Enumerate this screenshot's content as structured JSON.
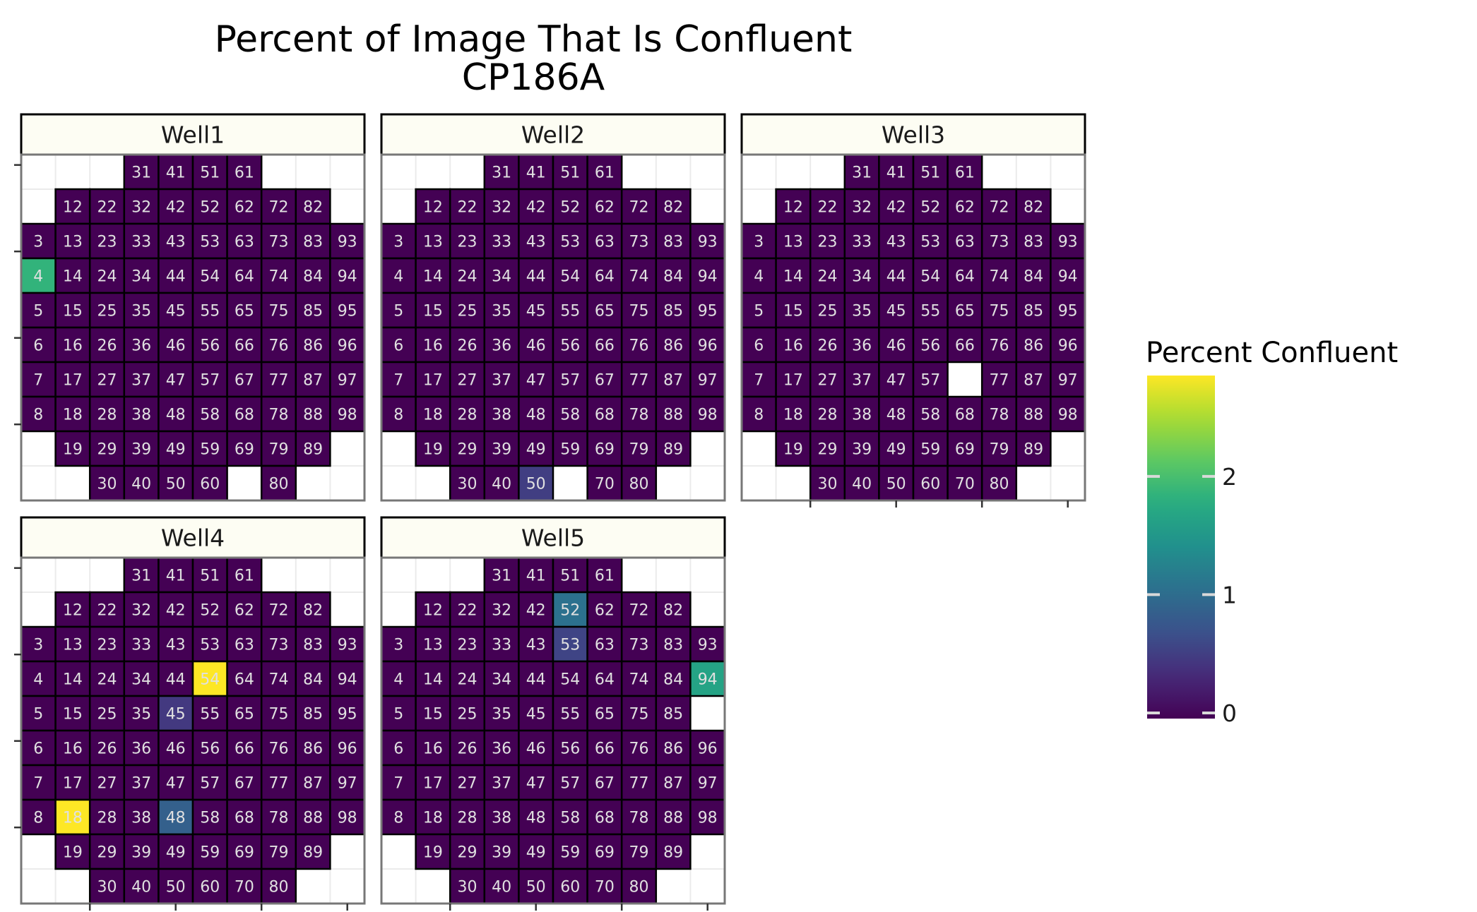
{
  "chart_data": {
    "type": "heatmap",
    "title": "Percent of Image That Is Confluent",
    "subtitle": "CP186A",
    "xlabel": "",
    "ylabel": "",
    "grid_layout": {
      "rows": 10,
      "cols": 10
    },
    "legend": {
      "title": "Percent Confluent",
      "placement": "right",
      "range": [
        0,
        2.9
      ],
      "ticks": [
        0,
        1,
        2
      ],
      "colormap": "viridis"
    },
    "panels": [
      {
        "name": "Well1",
        "missing": [
          70
        ],
        "values": {
          "4": 1.9
        }
      },
      {
        "name": "Well2",
        "missing": [
          60
        ],
        "values": {
          "50": 0.55
        }
      },
      {
        "name": "Well3",
        "missing": [
          67
        ],
        "values": {}
      },
      {
        "name": "Well4",
        "missing": [],
        "values": {
          "54": 2.9,
          "45": 0.5,
          "18": 2.9,
          "48": 0.9
        }
      },
      {
        "name": "Well5",
        "missing": [
          95
        ],
        "values": {
          "52": 1.1,
          "53": 0.6,
          "94": 1.7
        }
      }
    ],
    "site_layout": [
      [
        null,
        null,
        null,
        31,
        41,
        51,
        61,
        null,
        null,
        null
      ],
      [
        null,
        12,
        22,
        32,
        42,
        52,
        62,
        72,
        82,
        null
      ],
      [
        3,
        13,
        23,
        33,
        43,
        53,
        63,
        73,
        83,
        93
      ],
      [
        4,
        14,
        24,
        34,
        44,
        54,
        64,
        74,
        84,
        94
      ],
      [
        5,
        15,
        25,
        35,
        45,
        55,
        65,
        75,
        85,
        95
      ],
      [
        6,
        16,
        26,
        36,
        46,
        56,
        66,
        76,
        86,
        96
      ],
      [
        7,
        17,
        27,
        37,
        47,
        57,
        67,
        77,
        87,
        97
      ],
      [
        8,
        18,
        28,
        38,
        48,
        58,
        68,
        78,
        88,
        98
      ],
      [
        null,
        19,
        29,
        39,
        49,
        59,
        69,
        79,
        89,
        null
      ],
      [
        null,
        null,
        30,
        40,
        50,
        60,
        70,
        80,
        null,
        null
      ]
    ],
    "default_value": 0.0
  },
  "colors": {
    "strip_fill": "#fdfdf3",
    "cell_border": "#000000",
    "panel_border": "#777777",
    "grid": "#ebebeb",
    "label_color": "#e0e0e0"
  }
}
